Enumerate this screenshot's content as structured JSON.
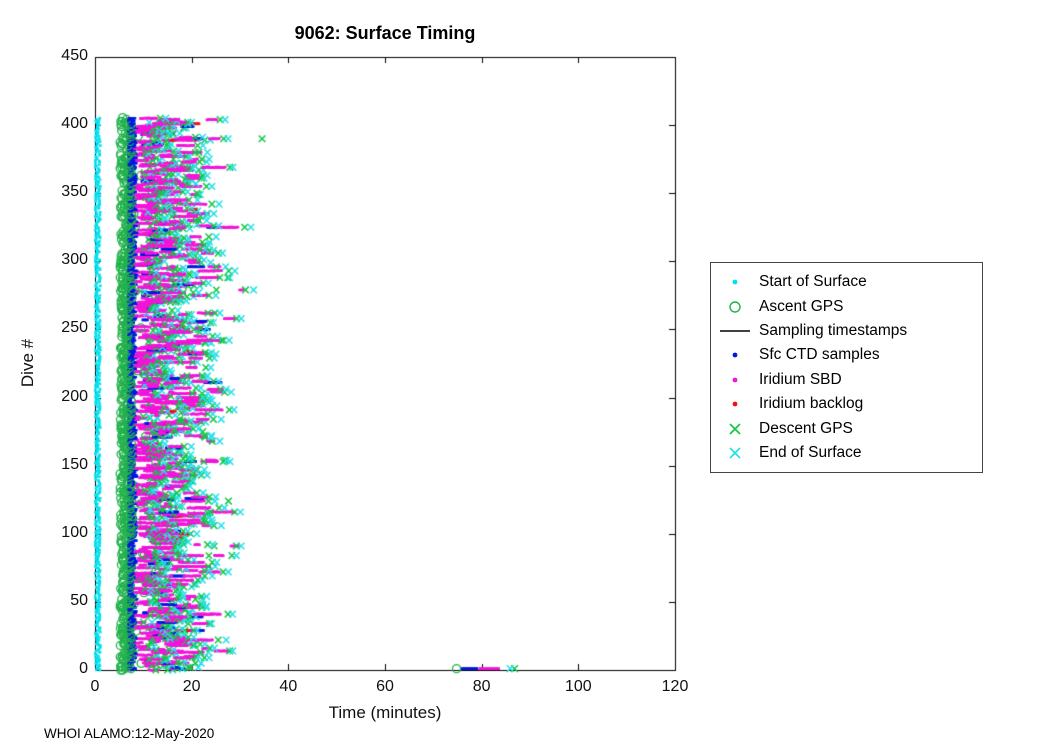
{
  "page": {
    "footer": "WHOI ALAMO:12-May-2020"
  },
  "chart_data": {
    "type": "scatter",
    "title": "9062: Surface Timing",
    "xlabel": "Time (minutes)",
    "ylabel": "Dive #",
    "xlim": [
      0,
      120
    ],
    "ylim": [
      0,
      450
    ],
    "xticks": [
      0,
      20,
      40,
      60,
      80,
      100,
      120
    ],
    "yticks": [
      0,
      50,
      100,
      150,
      200,
      250,
      300,
      350,
      400,
      450
    ],
    "grid": false,
    "legend_position": "right-outside",
    "series": [
      {
        "name": "Start of Surface",
        "marker": "point",
        "color": "#00e1f0",
        "x_range": [
          0,
          1.1
        ]
      },
      {
        "name": "Ascent GPS",
        "marker": "open-circle",
        "color": "#22b24c",
        "x_range": [
          5,
          15
        ]
      },
      {
        "name": "Sampling timestamps",
        "marker": "line",
        "color": "#000000",
        "x_range": [
          7.1,
          7.1
        ]
      },
      {
        "name": "Sfc CTD samples",
        "marker": "point",
        "color": "#0018e0",
        "x_range": [
          7,
          24
        ]
      },
      {
        "name": "Iridium SBD",
        "marker": "point",
        "color": "#f315d9",
        "x_range": [
          8,
          28
        ]
      },
      {
        "name": "Iridium backlog",
        "marker": "point",
        "color": "#e81515",
        "x_range": [
          13,
          23
        ]
      },
      {
        "name": "Descent GPS",
        "marker": "x",
        "color": "#14c743",
        "x_range": [
          9,
          35
        ]
      },
      {
        "name": "End of Surface",
        "marker": "x",
        "color": "#26dfe8",
        "x_range": [
          9,
          34
        ]
      }
    ],
    "generator": {
      "seed": 9062,
      "dive_max": 405,
      "start_band": [
        0.05,
        1.1
      ],
      "ascent_gps_band": [
        5.2,
        7.7
      ],
      "sampling_line_x": 7.1,
      "ctd_dense_band": [
        6.95,
        8.8
      ],
      "cloud_min": 8,
      "cloud_typ_max": 26,
      "cloud_abs_max": 34,
      "backlog_prob": 0.03
    },
    "outlier_segments": [
      {
        "series": "Sfc CTD samples",
        "y": 1,
        "x": [
          76.0,
          79.2
        ]
      },
      {
        "series": "Iridium SBD",
        "y": 1,
        "x": [
          79.6,
          83.5
        ]
      }
    ],
    "outlier_points": [
      {
        "series": "Ascent GPS",
        "y": 1,
        "x": 74.8
      },
      {
        "series": "Descent GPS",
        "y": 1,
        "x": 86.8
      },
      {
        "series": "End of Surface",
        "y": 1,
        "x": 85.9
      }
    ]
  }
}
